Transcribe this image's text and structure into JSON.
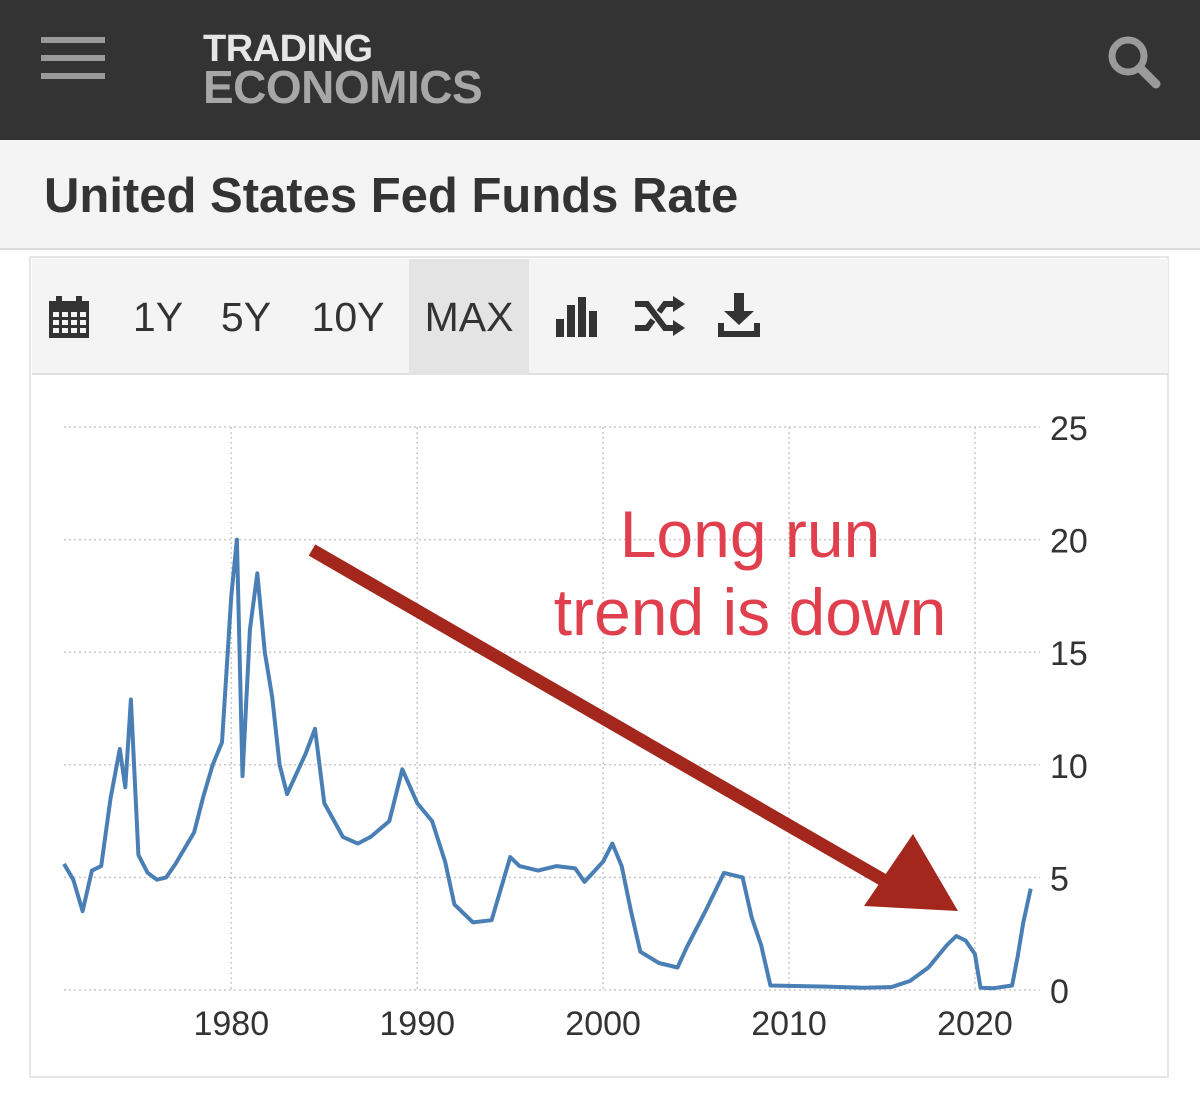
{
  "header": {
    "menu_icon": "hamburger-menu-icon",
    "logo_line1": "TRADING",
    "logo_line2": "ECONOMICS",
    "search_icon": "search-icon",
    "bar_color": "#333333"
  },
  "page": {
    "title": "United States Fed Funds Rate"
  },
  "toolbar": {
    "calendar_icon": "calendar-icon",
    "ranges": [
      "1Y",
      "5Y",
      "10Y",
      "MAX"
    ],
    "selected_range": "MAX",
    "bar_chart_icon": "bar-chart-icon",
    "shuffle_icon": "shuffle-icon",
    "download_icon": "download-icon"
  },
  "annotation": {
    "line1": "Long run",
    "line2": "trend is down",
    "text_color": "#e0404d",
    "arrow_color": "#a4271d"
  },
  "chart_data": {
    "type": "line",
    "series": [
      {
        "color": "#4a7fb5",
        "x": [
          1971.0,
          1971.5,
          1972.0,
          1972.5,
          1973.0,
          1973.5,
          1974.0,
          1974.3,
          1974.6,
          1975.0,
          1975.5,
          1976.0,
          1976.5,
          1977.0,
          1977.5,
          1978.0,
          1978.5,
          1979.0,
          1979.5,
          1980.0,
          1980.3,
          1980.6,
          1981.0,
          1981.4,
          1981.8,
          1982.2,
          1982.6,
          1983.0,
          1984.0,
          1984.5,
          1985.0,
          1986.0,
          1986.8,
          1987.5,
          1988.5,
          1989.2,
          1990.0,
          1990.8,
          1991.5,
          1992.0,
          1993.0,
          1994.0,
          1995.0,
          1995.5,
          1996.5,
          1997.5,
          1998.5,
          1999.0,
          2000.0,
          2000.5,
          2001.0,
          2001.5,
          2002.0,
          2003.0,
          2004.0,
          2004.5,
          2005.5,
          2006.5,
          2007.5,
          2008.0,
          2008.5,
          2009.0,
          2010.0,
          2012.0,
          2014.0,
          2015.5,
          2016.5,
          2017.5,
          2018.5,
          2019.0,
          2019.5,
          2020.0,
          2020.3,
          2021.0,
          2022.0,
          2022.3,
          2022.6,
          2023.0
        ],
        "values": [
          5.6,
          4.9,
          3.5,
          5.3,
          5.5,
          8.5,
          10.7,
          9.0,
          12.9,
          6.0,
          5.2,
          4.9,
          5.0,
          5.6,
          6.3,
          7.0,
          8.6,
          10.0,
          11.0,
          17.5,
          20.0,
          9.5,
          16.0,
          18.5,
          15.0,
          13.0,
          10.0,
          8.7,
          10.5,
          11.6,
          8.3,
          6.8,
          6.5,
          6.8,
          7.5,
          9.8,
          8.3,
          7.5,
          5.7,
          3.8,
          3.0,
          3.1,
          5.9,
          5.5,
          5.3,
          5.5,
          5.4,
          4.8,
          5.7,
          6.5,
          5.5,
          3.5,
          1.7,
          1.2,
          1.0,
          1.9,
          3.5,
          5.2,
          5.0,
          3.2,
          2.0,
          0.2,
          0.18,
          0.15,
          0.1,
          0.13,
          0.4,
          1.0,
          2.0,
          2.4,
          2.2,
          1.6,
          0.1,
          0.08,
          0.2,
          1.5,
          3.0,
          4.5
        ]
      }
    ],
    "x_ticks": [
      "1980",
      "1990",
      "2000",
      "2010",
      "2020"
    ],
    "y_ticks": [
      "0",
      "5",
      "10",
      "15",
      "20",
      "25"
    ],
    "xlim": [
      1971.0,
      2023.5
    ],
    "ylim": [
      0,
      25
    ],
    "y_axis_side": "right",
    "grid": true,
    "grid_style": "dotted"
  }
}
